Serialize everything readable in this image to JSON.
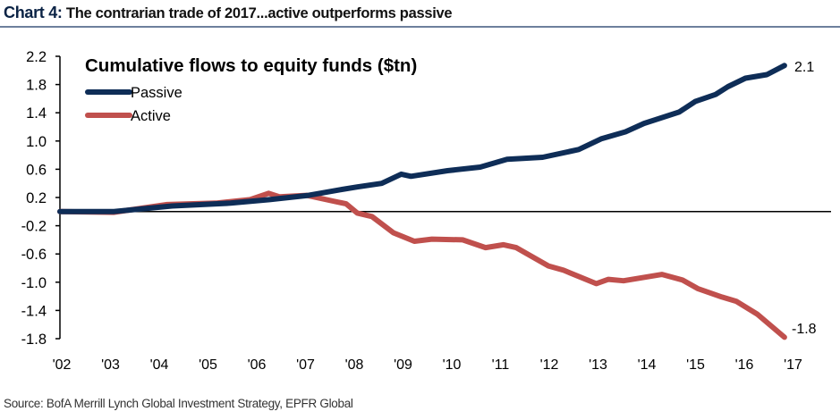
{
  "header": {
    "chart_number": "Chart 4:",
    "title": "The contrarian trade of 2017...active outperforms passive"
  },
  "source": "Source: BofA Merrill Lynch Global Investment Strategy, EPFR Global",
  "colors": {
    "passive": "#0e2d57",
    "active": "#c0504d",
    "rule": "#6d809c"
  },
  "chart_data": {
    "type": "line",
    "title": "Cumulative flows to equity funds ($tn)",
    "xlabel": "",
    "ylabel": "",
    "xlim": [
      2002,
      2017
    ],
    "ylim": [
      -1.8,
      2.2
    ],
    "yticks": [
      2.2,
      1.8,
      1.4,
      1.0,
      0.6,
      0.2,
      -0.2,
      -0.6,
      -1.0,
      -1.4,
      -1.8
    ],
    "ytick_labels": [
      "2.2",
      "1.8",
      "1.4",
      "1.0",
      "0.6",
      "0.2",
      "-0.2",
      "-0.6",
      "-1.0",
      "-1.4",
      "-1.8"
    ],
    "xticks": [
      2002,
      2003,
      2004,
      2005,
      2006,
      2007,
      2008,
      2009,
      2010,
      2011,
      2012,
      2013,
      2014,
      2015,
      2016,
      2017
    ],
    "xtick_labels": [
      "'02",
      "'03",
      "'04",
      "'05",
      "'06",
      "'07",
      "'08",
      "'09",
      "'10",
      "'11",
      "'12",
      "'13",
      "'14",
      "'15",
      "'16",
      "'17"
    ],
    "grid": false,
    "legend": "top-left",
    "series": [
      {
        "name": "Passive",
        "end_label": "2.1",
        "x": [
          2002,
          2003.1,
          2003.7,
          2004.3,
          2005.5,
          2006.3,
          2007.1,
          2007.75,
          2008.1,
          2008.6,
          2009.0,
          2009.2,
          2009.95,
          2010.62,
          2011.17,
          2011.9,
          2012.64,
          2013.1,
          2013.6,
          2013.98,
          2014.7,
          2015.03,
          2015.45,
          2015.7,
          2016.06,
          2016.5,
          2016.86
        ],
        "y": [
          0.0,
          0.0,
          0.04,
          0.08,
          0.12,
          0.17,
          0.23,
          0.31,
          0.35,
          0.4,
          0.53,
          0.5,
          0.58,
          0.63,
          0.74,
          0.77,
          0.88,
          1.03,
          1.13,
          1.25,
          1.41,
          1.56,
          1.66,
          1.77,
          1.89,
          1.94,
          2.07
        ]
      },
      {
        "name": "Active",
        "end_label": "-1.8",
        "x": [
          2002,
          2003.1,
          2004.2,
          2005.2,
          2005.9,
          2006.28,
          2006.5,
          2007.06,
          2007.6,
          2007.87,
          2008.1,
          2008.4,
          2008.84,
          2009.27,
          2009.63,
          2010.26,
          2010.73,
          2011.1,
          2011.36,
          2012.02,
          2012.33,
          2013.0,
          2013.25,
          2013.56,
          2014.35,
          2014.77,
          2015.08,
          2015.58,
          2015.87,
          2016.3,
          2016.86
        ],
        "y": [
          0.0,
          -0.01,
          0.1,
          0.12,
          0.17,
          0.26,
          0.21,
          0.23,
          0.15,
          0.11,
          -0.02,
          -0.07,
          -0.3,
          -0.42,
          -0.39,
          -0.4,
          -0.51,
          -0.47,
          -0.51,
          -0.77,
          -0.83,
          -1.02,
          -0.96,
          -0.98,
          -0.89,
          -0.97,
          -1.09,
          -1.21,
          -1.27,
          -1.45,
          -1.78
        ]
      }
    ]
  }
}
